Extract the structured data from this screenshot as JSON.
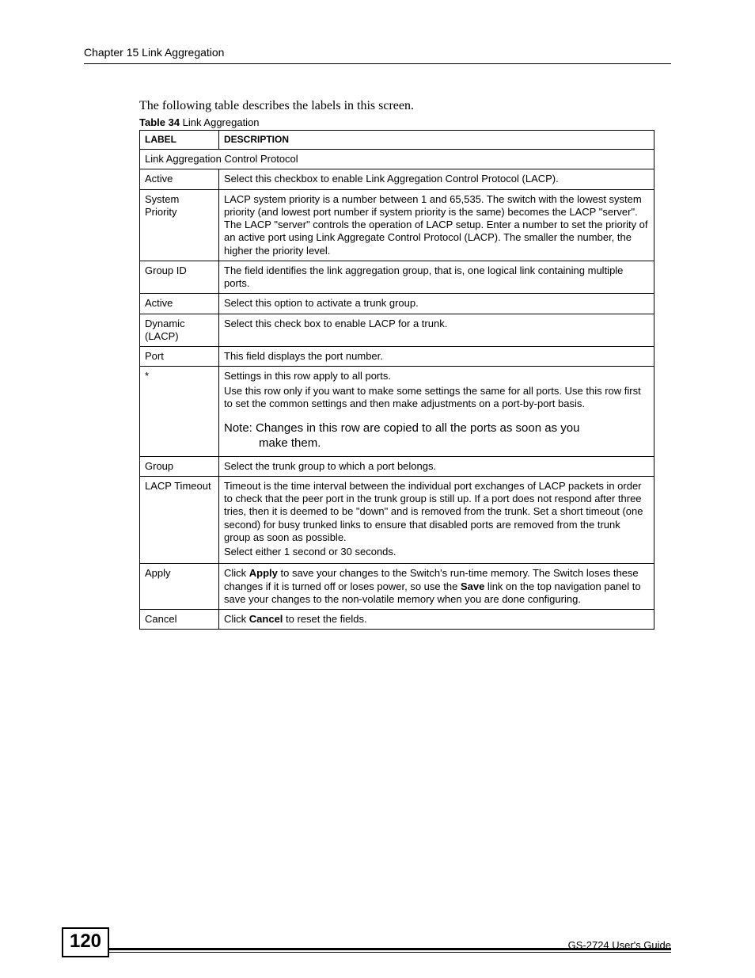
{
  "header": {
    "chapter_title": "Chapter 15 Link Aggregation"
  },
  "intro_text": "The following table describes the labels in this screen.",
  "table": {
    "caption_bold": "Table 34",
    "caption_rest": "   Link Aggregation",
    "header_label": "LABEL",
    "header_desc": "DESCRIPTION",
    "section_row": "Link Aggregation Control Protocol",
    "rows": {
      "active1": {
        "label": "Active",
        "desc": "Select this checkbox to enable Link Aggregation Control Protocol (LACP)."
      },
      "system_priority": {
        "label": "System Priority",
        "desc": "LACP system priority is a number between 1 and 65,535. The switch with the lowest system priority (and lowest port number if system priority is the same) becomes the LACP \"server\". The LACP \"server\" controls the operation of LACP setup. Enter a number to set the priority of an active port using Link Aggregate Control Protocol (LACP). The smaller the number, the higher the priority level."
      },
      "group_id": {
        "label": "Group ID",
        "desc": "The field identifies the link aggregation group, that is, one logical link containing multiple ports."
      },
      "active2": {
        "label": "Active",
        "desc": "Select this option to activate a trunk group."
      },
      "dynamic": {
        "label": "Dynamic (LACP)",
        "desc": "Select this check box to enable LACP for a trunk."
      },
      "port": {
        "label": "Port",
        "desc": "This field displays the port number."
      },
      "star": {
        "label": "*",
        "p1": "Settings in this row apply to all ports.",
        "p2": "Use this row only if you want to make some settings the same for all ports. Use this row first to set the common settings and then make adjustments on a port-by-port basis.",
        "note1": "Note: Changes in this row are copied to all the ports as soon as you",
        "note2": "make them."
      },
      "group": {
        "label": "Group",
        "desc": "Select the trunk group to which a port belongs."
      },
      "lacp_timeout": {
        "label": "LACP Timeout",
        "p1": "Timeout is the time interval between the individual port exchanges of LACP packets in order to check that the peer port in the trunk group is still up. If a port does not respond after three tries, then it is deemed to be \"down\" and is removed from the trunk. Set a short timeout (one second) for busy trunked links to ensure that disabled ports are removed from the trunk group as soon as possible.",
        "p2": "Select either 1 second or 30 seconds."
      },
      "apply": {
        "label": "Apply",
        "pre": "Click ",
        "bold1": "Apply",
        "mid": " to save your changes to the Switch's run-time memory. The Switch loses these changes if it is turned off or loses power, so use the ",
        "bold2": "Save",
        "post": " link on the top navigation panel to save your changes to the non-volatile memory when you are done configuring."
      },
      "cancel": {
        "label": "Cancel",
        "pre": "Click ",
        "bold": "Cancel",
        "post": " to reset the fields."
      }
    }
  },
  "footer": {
    "page_number": "120",
    "guide_name": "GS-2724 User's Guide"
  }
}
